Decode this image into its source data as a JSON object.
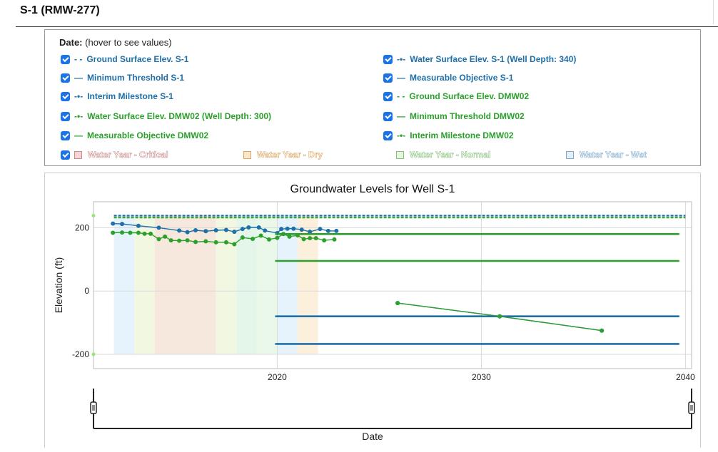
{
  "page": {
    "title": "S-1 (RMW-277)"
  },
  "legend": {
    "header_label": "Date:",
    "header_hint": "(hover to see values)",
    "items": [
      {
        "label": "Ground Surface Elev. S-1",
        "symbol": "- -",
        "color": "#1f6fa8",
        "checked": true
      },
      {
        "label": "Water Surface Elev. S-1 (Well Depth: 340)",
        "symbol": "-•-",
        "color": "#1f6fa8",
        "checked": true
      },
      {
        "label": "Minimum Threshold S-1",
        "symbol": "—",
        "color": "#1f6fa8",
        "checked": true
      },
      {
        "label": "Measurable Objective S-1",
        "symbol": "—",
        "color": "#1f6fa8",
        "checked": true
      },
      {
        "label": "Interim Milestone S-1",
        "symbol": "-•-",
        "color": "#1f6fa8",
        "checked": true
      },
      {
        "label": "Ground Surface Elev. DMW02",
        "symbol": "- -",
        "color": "#2ca02c",
        "checked": true
      },
      {
        "label": "Water Surface Elev. DMW02 (Well Depth: 300)",
        "symbol": "-•-",
        "color": "#2ca02c",
        "checked": true
      },
      {
        "label": "Minimum Threshold DMW02",
        "symbol": "—",
        "color": "#2ca02c",
        "checked": true
      },
      {
        "label": "Measurable Objective DMW02",
        "symbol": "—",
        "color": "#2ca02c",
        "checked": true
      },
      {
        "label": "Interim Milestone DMW02",
        "symbol": "-•-",
        "color": "#2ca02c",
        "checked": true
      }
    ],
    "water_years": [
      {
        "label": "Water Year - Critical",
        "fill": "#f4d6d6",
        "stroke": "#c98b8b",
        "checked": true
      },
      {
        "label": "Water Year - Dry",
        "fill": "#fbe8cc",
        "stroke": "#d9a45e",
        "checked": false
      },
      {
        "label": "Water Year - Normal",
        "fill": "#e6f7df",
        "stroke": "#86c07a",
        "checked": false
      },
      {
        "label": "Water Year - Wet",
        "fill": "#e2f0fb",
        "stroke": "#7fa9cc",
        "checked": false
      }
    ]
  },
  "chart_data": {
    "type": "line",
    "title": "Groundwater Levels for Well S-1",
    "xlabel": "Date",
    "ylabel": "Elevation (ft)",
    "xlim": [
      2011.0,
      2040.3
    ],
    "ylim": [
      -245,
      282
    ],
    "xticks": [
      2020,
      2030,
      2040
    ],
    "yticks": [
      -200,
      0,
      200
    ],
    "grid": true,
    "colors": {
      "s1": "#1f6fa8",
      "dmw02": "#2ca02c"
    },
    "water_year_bands": [
      {
        "start": 2012.0,
        "end": 2013.0,
        "type": "Wet",
        "color": "#e2f0fb"
      },
      {
        "start": 2013.0,
        "end": 2014.0,
        "type": "Normal",
        "color": "#eef6dc"
      },
      {
        "start": 2014.0,
        "end": 2017.0,
        "type": "Critical",
        "color": "#f5e4d6"
      },
      {
        "start": 2017.0,
        "end": 2018.0,
        "type": "Normal",
        "color": "#eef6dc"
      },
      {
        "start": 2018.0,
        "end": 2019.0,
        "type": "Normal",
        "color": "#dff5e6"
      },
      {
        "start": 2019.0,
        "end": 2020.0,
        "type": "Normal",
        "color": "#e6f7e6"
      },
      {
        "start": 2020.0,
        "end": 2021.0,
        "type": "Wet",
        "color": "#e2f0fb"
      },
      {
        "start": 2021.0,
        "end": 2022.0,
        "type": "Dry",
        "color": "#fcecd6"
      }
    ],
    "series": [
      {
        "name": "Ground Surface Elev. S-1",
        "key": "s1",
        "style": "dash",
        "x": [
          2012.0,
          2040.0
        ],
        "y": [
          238,
          238
        ]
      },
      {
        "name": "Ground Surface Elev. DMW02",
        "key": "dmw02",
        "style": "dash",
        "x": [
          2012.0,
          2040.0
        ],
        "y": [
          232,
          232
        ]
      },
      {
        "name": "Water Surface Elev. S-1 (Well Depth: 340)",
        "key": "s1",
        "style": "line-markers",
        "x": [
          2011.95,
          2012.4,
          2013.2,
          2014.2,
          2015.2,
          2015.6,
          2016.0,
          2016.5,
          2017.0,
          2017.5,
          2017.9,
          2018.3,
          2018.6,
          2019.1,
          2019.4,
          2020.0,
          2020.2,
          2020.5,
          2020.8,
          2021.2,
          2021.6,
          2022.1,
          2022.5,
          2022.9
        ],
        "y": [
          213,
          212,
          206,
          200,
          191,
          186,
          192,
          189,
          192,
          193,
          187,
          196,
          201,
          201,
          191,
          183,
          196,
          197,
          197,
          194,
          187,
          196,
          190,
          190
        ]
      },
      {
        "name": "Water Surface Elev. DMW02 (Well Depth: 300)",
        "key": "dmw02",
        "style": "line-markers",
        "x": [
          2011.95,
          2012.4,
          2012.8,
          2013.2,
          2013.5,
          2013.8,
          2014.2,
          2014.5,
          2014.8,
          2015.2,
          2015.6,
          2016.0,
          2016.5,
          2017.0,
          2017.5,
          2017.9,
          2018.3,
          2018.8,
          2019.2,
          2019.6,
          2020.0,
          2020.3,
          2020.6,
          2021.0,
          2021.3,
          2021.6,
          2021.9,
          2022.3,
          2022.8
        ],
        "y": [
          184,
          185,
          184,
          184,
          181,
          181,
          164,
          172,
          160,
          159,
          160,
          155,
          157,
          154,
          154,
          148,
          169,
          165,
          175,
          163,
          168,
          180,
          172,
          176,
          164,
          167,
          167,
          160,
          163
        ]
      },
      {
        "name": "Measurable Objective DMW02",
        "key": "dmw02",
        "style": "solid",
        "x": [
          2019.9,
          2039.7
        ],
        "y": [
          180,
          180
        ]
      },
      {
        "name": "Minimum Threshold DMW02",
        "key": "dmw02",
        "style": "solid",
        "x": [
          2019.9,
          2039.7
        ],
        "y": [
          95,
          95
        ]
      },
      {
        "name": "Measurable Objective S-1",
        "key": "s1",
        "style": "solid",
        "x": [
          2019.9,
          2039.7
        ],
        "y": [
          -80,
          -80
        ]
      },
      {
        "name": "Minimum Threshold S-1",
        "key": "s1",
        "style": "solid",
        "x": [
          2019.9,
          2039.7
        ],
        "y": [
          -167,
          -167
        ]
      },
      {
        "name": "Interim Milestone S-1",
        "key": "s1",
        "style": "line-markers",
        "x": [
          2025.9,
          2030.9,
          2035.9
        ],
        "y": [
          -38,
          -80,
          -125
        ]
      },
      {
        "name": "Interim Milestone DMW02",
        "key": "dmw02",
        "style": "line-markers",
        "x": [
          2025.9,
          2030.9,
          2035.9
        ],
        "y": [
          -38,
          -80,
          -125
        ]
      }
    ]
  }
}
